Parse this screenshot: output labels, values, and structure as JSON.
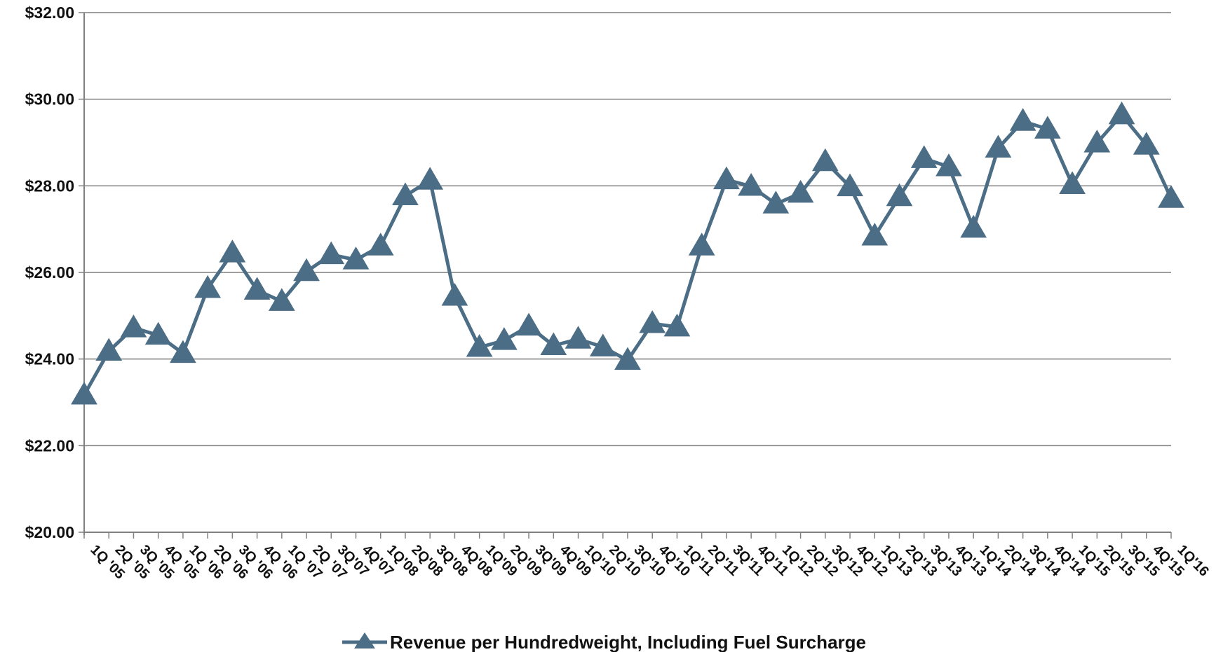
{
  "chart_data": {
    "type": "line",
    "categories": [
      "1Q '05",
      "2Q '05",
      "3Q '05",
      "4Q '05",
      "1Q '06",
      "2Q '06",
      "3Q '06",
      "4Q '06",
      "1Q '07",
      "2Q '07",
      "3Q'07",
      "4Q'07",
      "1Q'08",
      "2Q'08",
      "3Q'08",
      "4Q'08",
      "1Q'09",
      "2Q'09",
      "3Q'09",
      "4Q'09",
      "1Q'10",
      "2Q'10",
      "3Q'10",
      "4Q'10",
      "1Q'11",
      "2Q'11",
      "3Q'11",
      "4Q'11",
      "1Q'12",
      "2Q'12",
      "3Q'12",
      "4Q'12",
      "1Q'13",
      "2Q'13",
      "3Q'13",
      "4Q'13",
      "1Q'14",
      "2Q'14",
      "3Q'14",
      "4Q'14",
      "1Q'15",
      "2Q'15",
      "3Q'15",
      "4Q'15",
      "1Q'16"
    ],
    "series": [
      {
        "name": "Revenue per Hundredweight, Including Fuel Surcharge",
        "values": [
          23.17,
          24.18,
          24.72,
          24.55,
          24.13,
          25.63,
          26.45,
          25.59,
          25.33,
          26.02,
          26.41,
          26.29,
          26.61,
          27.77,
          28.13,
          25.45,
          24.27,
          24.43,
          24.76,
          24.31,
          24.46,
          24.28,
          23.97,
          24.82,
          24.74,
          26.61,
          28.14,
          27.99,
          27.58,
          27.83,
          28.56,
          27.98,
          26.84,
          27.75,
          28.63,
          28.44,
          27.02,
          28.87,
          29.49,
          29.31,
          28.03,
          28.99,
          29.64,
          28.94,
          27.71
        ]
      }
    ],
    "ylim": [
      20,
      32
    ],
    "yticks": [
      "$20.00",
      "$22.00",
      "$24.00",
      "$26.00",
      "$28.00",
      "$30.00",
      "$32.00"
    ],
    "grid": "horizontal",
    "legend": "bottom-center",
    "colors": {
      "series": "#4b6d85",
      "grid": "#7f7f7f",
      "axis": "#7f7f7f"
    },
    "marker": "triangle"
  }
}
